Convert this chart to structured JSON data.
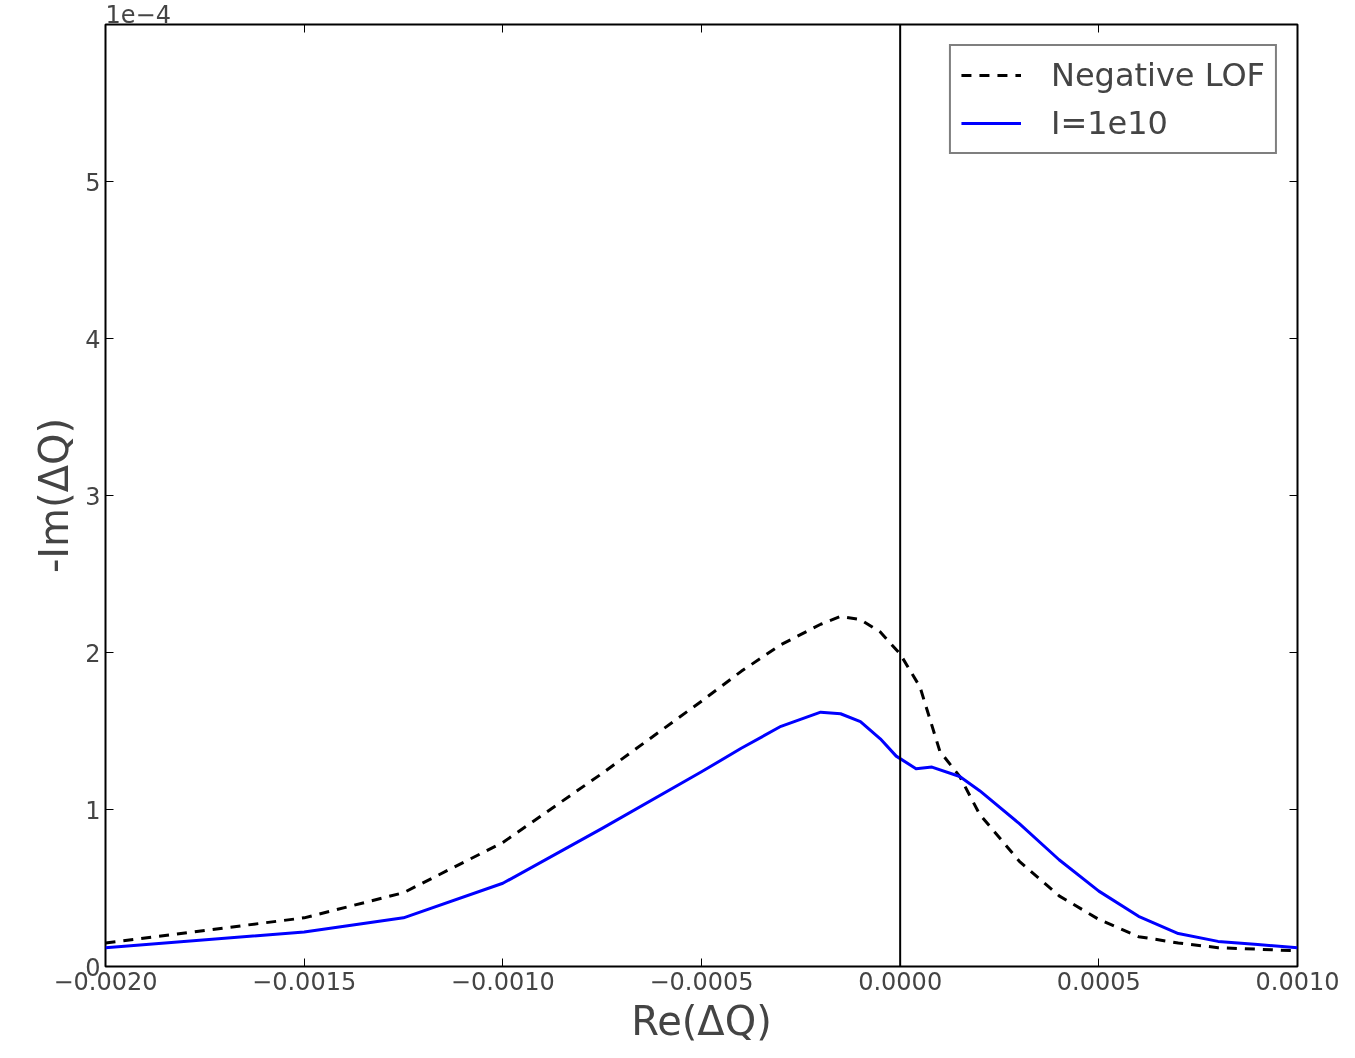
{
  "chart_data": {
    "type": "line",
    "xlabel": "Re(ΔQ)",
    "ylabel": "-Im(ΔQ)",
    "annotations": [
      "1e−4"
    ],
    "series": [
      {
        "name": "Negative LOF",
        "color": "#000000",
        "line_style": "dashed",
        "x": [
          -0.002,
          -0.0015,
          -0.00125,
          -0.001,
          -0.00075,
          -0.0005,
          -0.0004,
          -0.0003,
          -0.0002,
          -0.00015,
          -0.0001,
          -5e-05,
          0,
          5e-05,
          0.0001,
          0.00015,
          0.0002,
          0.0003,
          0.0004,
          0.0005,
          0.0006,
          0.0007,
          0.0008,
          0.0009,
          0.001
        ],
        "values": [
          0.15,
          0.31,
          0.47,
          0.79,
          1.23,
          1.69,
          1.88,
          2.05,
          2.18,
          2.23,
          2.21,
          2.13,
          1.99,
          1.78,
          1.37,
          1.21,
          0.97,
          0.67,
          0.45,
          0.3,
          0.19,
          0.15,
          0.12,
          0.11,
          0.1
        ]
      },
      {
        "name": "I=1e10",
        "color": "#0000ff",
        "line_style": "solid",
        "x": [
          -0.002,
          -0.0015,
          -0.00125,
          -0.001,
          -0.00075,
          -0.0005,
          -0.0004,
          -0.0003,
          -0.0002,
          -0.00015,
          -0.0001,
          -5e-05,
          -1e-05,
          4e-05,
          8e-05,
          0.00015,
          0.0002,
          0.0003,
          0.0004,
          0.0005,
          0.0006,
          0.0007,
          0.0008,
          0.0009,
          0.001
        ],
        "values": [
          0.12,
          0.22,
          0.31,
          0.53,
          0.88,
          1.24,
          1.39,
          1.53,
          1.62,
          1.61,
          1.56,
          1.45,
          1.34,
          1.26,
          1.27,
          1.21,
          1.12,
          0.91,
          0.68,
          0.48,
          0.32,
          0.21,
          0.16,
          0.14,
          0.12
        ]
      }
    ],
    "xlim": [
      -0.002,
      0.001
    ],
    "xticks": [
      {
        "value": -0.002,
        "label": "−0.0020"
      },
      {
        "value": -0.0015,
        "label": "−0.0015"
      },
      {
        "value": -0.001,
        "label": "−0.0010"
      },
      {
        "value": -0.0005,
        "label": "−0.0005"
      },
      {
        "value": 0,
        "label": "0.0000"
      },
      {
        "value": 0.0005,
        "label": "0.0005"
      },
      {
        "value": 0.001,
        "label": "0.0010"
      }
    ],
    "ylim": [
      0,
      6
    ],
    "yticks": [
      0,
      1,
      2,
      3,
      4,
      5
    ],
    "ref_lines": [
      {
        "axis": "x",
        "value": 0,
        "color": "#000000"
      }
    ],
    "legend": "top right",
    "grid": false,
    "marker": "none"
  }
}
